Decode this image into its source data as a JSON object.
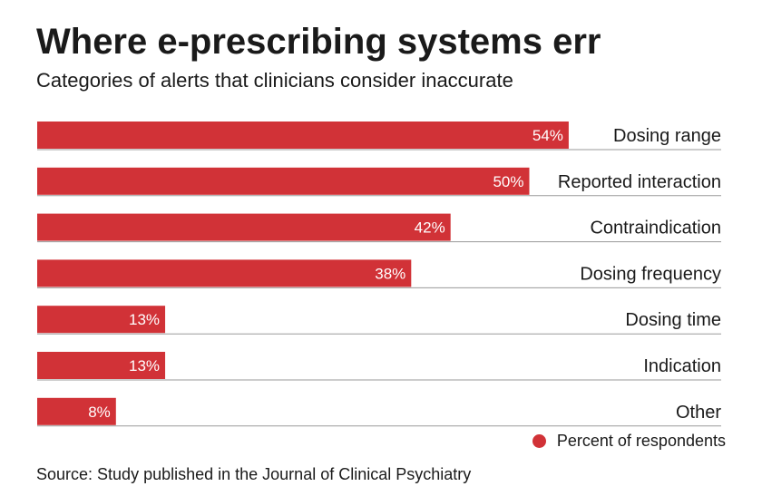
{
  "header": {
    "title": "Where e-prescribing systems err",
    "subtitle": "Categories of alerts that clinicians consider inaccurate"
  },
  "legend": {
    "label": "Percent of respondents"
  },
  "source": "Source: Study published in the Journal of Clinical Psychiatry",
  "colors": {
    "bar": "#d13237",
    "text": "#1a1a1a",
    "rule": "#9a9a9a",
    "bar_label": "#ffffff"
  },
  "chart_data": {
    "type": "bar",
    "orientation": "horizontal",
    "title": "Where e-prescribing systems err",
    "subtitle": "Categories of alerts that clinicians consider inaccurate",
    "categories": [
      "Dosing range",
      "Reported interaction",
      "Contraindication",
      "Dosing frequency",
      "Dosing time",
      "Indication",
      "Other"
    ],
    "values": [
      54,
      50,
      42,
      38,
      13,
      13,
      8
    ],
    "value_labels": [
      "54%",
      "50%",
      "42%",
      "38%",
      "13%",
      "13%",
      "8%"
    ],
    "series": [
      {
        "name": "Percent of respondents",
        "values": [
          54,
          50,
          42,
          38,
          13,
          13,
          8
        ]
      }
    ],
    "xlim": [
      0,
      100
    ],
    "grid": false,
    "legend_position": "bottom-right"
  }
}
